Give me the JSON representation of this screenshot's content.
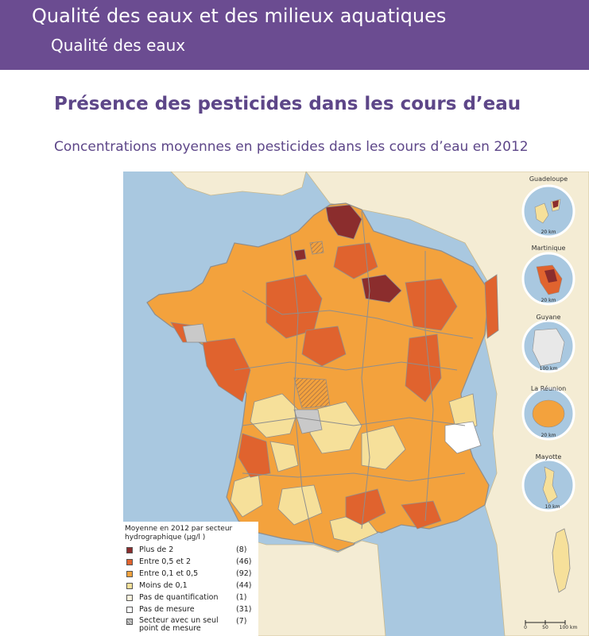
{
  "header": {
    "title": "Qualité des eaux et des milieux aquatiques",
    "subtitle": "Qualité des eaux"
  },
  "page_title": "Présence des pesticides dans les cours d’eau",
  "map": {
    "title": "Concentrations moyennes en pesticides dans les cours d’eau en 2012",
    "colors": {
      "sea": "#a9c8e0",
      "land_outside": "#f4ecd4",
      "plus_de_2": "#8b2d2d",
      "entre_05_2": "#e0632e",
      "entre_01_05": "#f3a23d",
      "moins_01": "#f6e09a",
      "pas_quantification": "#fbf3dc",
      "pas_mesure": "#ffffff",
      "un_seul_point": "#c9c9c9",
      "borders": "#8e8e8e"
    },
    "insets": [
      {
        "name": "Guadeloupe",
        "scale": "20 km"
      },
      {
        "name": "Martinique",
        "scale": "20 km"
      },
      {
        "name": "Guyane",
        "scale": "100 km"
      },
      {
        "name": "La Réunion",
        "scale": "20 km"
      },
      {
        "name": "Mayotte",
        "scale": "10 km"
      }
    ],
    "main_scale": [
      "0",
      "50",
      "100 km"
    ]
  },
  "legend": {
    "title": "Moyenne en 2012 par secteur hydrographique (µg/l )",
    "items": [
      {
        "label": "Plus de 2",
        "count": "(8)",
        "color": "#8b2d2d"
      },
      {
        "label": "Entre 0,5 et 2",
        "count": "(46)",
        "color": "#e0632e"
      },
      {
        "label": "Entre 0,1 et 0,5",
        "count": "(92)",
        "color": "#f3a23d"
      },
      {
        "label": "Moins de 0,1",
        "count": "(44)",
        "color": "#f6e09a"
      },
      {
        "label": "Pas de quantification",
        "count": "(1)",
        "color": "#fbf3dc"
      },
      {
        "label": "Pas de mesure",
        "count": "(31)",
        "color": "#ffffff"
      },
      {
        "label": "Secteur avec un seul",
        "label2": "point de mesure",
        "count": "(7)",
        "color": "#c9c9c9"
      }
    ]
  }
}
